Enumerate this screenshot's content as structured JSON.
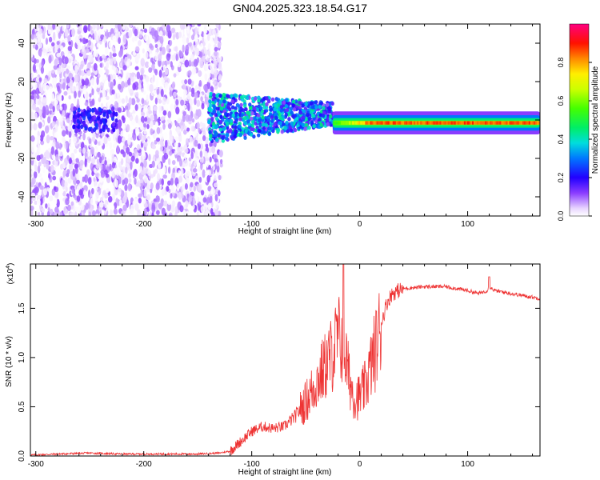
{
  "title": "GN04.2025.323.18.54.G17",
  "chart_data": [
    {
      "type": "heatmap",
      "title": "GN04.2025.323.18.54.G17",
      "xlabel": "Height of straight line (km)",
      "ylabel": "Frequency (Hz)",
      "xlim": [
        -305,
        167
      ],
      "ylim": [
        -50,
        50
      ],
      "x_ticks": [
        "-300",
        "-200",
        "-100",
        "0",
        "100"
      ],
      "y_ticks": [
        "-40",
        "-20",
        "0",
        "20",
        "40"
      ],
      "colorbar": {
        "label": "Normalized spectral amplitude",
        "range": [
          0,
          1
        ],
        "ticks": [
          "0.0",
          "0.2",
          "0.4",
          "0.6",
          "0.8"
        ]
      },
      "regions": [
        {
          "x_range": [
            -305,
            -128
          ],
          "freq_range": [
            -50,
            50
          ],
          "amplitude_range": [
            0.0,
            0.12
          ],
          "desc_level": "scattered noise"
        },
        {
          "x_range": [
            -265,
            -225
          ],
          "freq_range": [
            -6,
            6
          ],
          "amplitude_range": [
            0.12,
            0.25
          ]
        },
        {
          "x_range": [
            -140,
            -25
          ],
          "freq_range": [
            -12,
            18
          ],
          "amplitude_range": [
            0.1,
            0.45
          ]
        },
        {
          "x_range": [
            -25,
            167
          ],
          "freq_center": -1.5,
          "amplitude_range": [
            0.6,
            0.9
          ]
        }
      ],
      "colors": {
        "low": "#e6d2ff",
        "mid": "#6a00ff",
        "high": "#ff0040",
        "peak": "#ff3399"
      }
    },
    {
      "type": "line",
      "xlabel": "Height of straight line (km)",
      "ylabel": "SNR (10 * v/v)",
      "y_multiplier": "(x10",
      "y_multiplier_exp": "4",
      "y_multiplier_close": ")",
      "xlim": [
        -305,
        167
      ],
      "ylim": [
        0,
        1.95
      ],
      "x_ticks": [
        "-300",
        "-200",
        "-100",
        "0",
        "100"
      ],
      "y_ticks": [
        "0.0",
        "0.5",
        "1.0",
        "1.5"
      ],
      "series": [
        {
          "color": "#ee3333",
          "x": [
            -305,
            -280,
            -250,
            -220,
            -200,
            -180,
            -150,
            -130,
            -120,
            -110,
            -100,
            -90,
            -80,
            -70,
            -60,
            -50,
            -45,
            -40,
            -35,
            -30,
            -25,
            -20,
            -15,
            -10,
            -5,
            0,
            5,
            10,
            15,
            20,
            25,
            30,
            40,
            60,
            80,
            100,
            110,
            118,
            120,
            125,
            140,
            167
          ],
          "values": [
            0.01,
            0.02,
            0.03,
            0.02,
            0.02,
            0.02,
            0.02,
            0.03,
            0.05,
            0.15,
            0.25,
            0.3,
            0.28,
            0.3,
            0.4,
            0.55,
            0.65,
            0.75,
            0.85,
            0.95,
            1.05,
            1.2,
            1.15,
            0.8,
            0.6,
            0.6,
            0.7,
            0.9,
            1.1,
            1.35,
            1.55,
            1.65,
            1.7,
            1.72,
            1.72,
            1.68,
            1.65,
            1.68,
            1.72,
            1.68,
            1.65,
            1.6
          ]
        }
      ]
    }
  ]
}
